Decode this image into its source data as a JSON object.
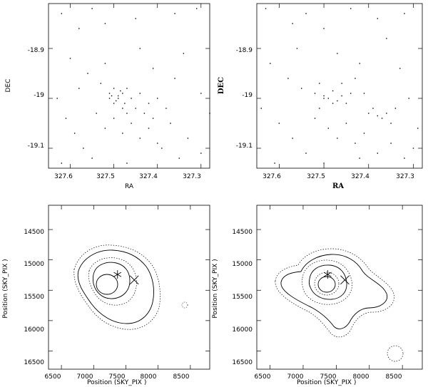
{
  "chart_data": [
    {
      "type": "scatter",
      "panel": "top-left",
      "xlabel": "RA",
      "ylabel": "DEC",
      "xlim": [
        327.65,
        327.28
      ],
      "ylim": [
        -19.14,
        -18.81
      ],
      "x_ticks": [
        "327.6",
        "327.5",
        "327.4",
        "327.3"
      ],
      "y_ticks": [
        "-18.9",
        "-19",
        "-19.1"
      ],
      "x_tick_values": [
        327.6,
        327.5,
        327.4,
        327.3
      ],
      "y_tick_values": [
        -18.9,
        -19.0,
        -19.1
      ],
      "points": [
        [
          327.62,
          -18.83
        ],
        [
          327.58,
          -18.86
        ],
        [
          327.55,
          -18.82
        ],
        [
          327.52,
          -18.85
        ],
        [
          327.45,
          -18.84
        ],
        [
          327.36,
          -18.83
        ],
        [
          327.31,
          -18.82
        ],
        [
          327.6,
          -18.92
        ],
        [
          327.56,
          -18.95
        ],
        [
          327.53,
          -18.97
        ],
        [
          327.51,
          -18.99
        ],
        [
          327.5,
          -18.98
        ],
        [
          327.49,
          -19.0
        ],
        [
          327.48,
          -18.99
        ],
        [
          327.505,
          -18.995
        ],
        [
          327.495,
          -19.005
        ],
        [
          327.485,
          -18.985
        ],
        [
          327.475,
          -19.01
        ],
        [
          327.47,
          -18.98
        ],
        [
          327.46,
          -19.0
        ],
        [
          327.45,
          -19.02
        ],
        [
          327.44,
          -18.99
        ],
        [
          327.43,
          -19.03
        ],
        [
          327.42,
          -19.01
        ],
        [
          327.41,
          -19.04
        ],
        [
          327.4,
          -19.0
        ],
        [
          327.38,
          -19.02
        ],
        [
          327.36,
          -18.96
        ],
        [
          327.34,
          -18.91
        ],
        [
          327.3,
          -18.99
        ],
        [
          327.28,
          -19.03
        ],
        [
          327.63,
          -19.0
        ],
        [
          327.61,
          -19.04
        ],
        [
          327.59,
          -19.07
        ],
        [
          327.57,
          -19.1
        ],
        [
          327.54,
          -19.03
        ],
        [
          327.52,
          -19.06
        ],
        [
          327.5,
          -19.04
        ],
        [
          327.48,
          -19.07
        ],
        [
          327.46,
          -19.05
        ],
        [
          327.44,
          -19.08
        ],
        [
          327.42,
          -19.06
        ],
        [
          327.4,
          -19.09
        ],
        [
          327.37,
          -19.05
        ],
        [
          327.35,
          -19.12
        ],
        [
          327.33,
          -19.08
        ],
        [
          327.3,
          -19.11
        ],
        [
          327.62,
          -19.13
        ],
        [
          327.55,
          -19.12
        ],
        [
          327.47,
          -19.13
        ],
        [
          327.39,
          -19.1
        ],
        [
          327.52,
          -18.93
        ],
        [
          327.44,
          -18.9
        ],
        [
          327.41,
          -18.94
        ],
        [
          327.58,
          -18.98
        ],
        [
          327.5,
          -19.01
        ],
        [
          327.49,
          -18.995
        ],
        [
          327.51,
          -19.0
        ],
        [
          327.48,
          -19.02
        ],
        [
          327.47,
          -19.03
        ]
      ]
    },
    {
      "type": "scatter",
      "panel": "top-right",
      "xlabel": "RA",
      "ylabel": "DEC",
      "xlim": [
        327.65,
        327.28
      ],
      "ylim": [
        -19.14,
        -18.81
      ],
      "x_ticks": [
        "327.6",
        "327.5",
        "327.4",
        "327.3"
      ],
      "y_ticks": [
        "-18.9",
        "-19",
        "-19.1"
      ],
      "x_tick_values": [
        327.6,
        327.5,
        327.4,
        327.3
      ],
      "y_tick_values": [
        -18.9,
        -19.0,
        -19.1
      ],
      "points": [
        [
          327.63,
          -18.82
        ],
        [
          327.57,
          -18.85
        ],
        [
          327.54,
          -18.83
        ],
        [
          327.5,
          -18.86
        ],
        [
          327.44,
          -18.82
        ],
        [
          327.38,
          -18.84
        ],
        [
          327.32,
          -18.83
        ],
        [
          327.62,
          -18.93
        ],
        [
          327.58,
          -18.96
        ],
        [
          327.55,
          -18.98
        ],
        [
          327.52,
          -18.99
        ],
        [
          327.51,
          -18.97
        ],
        [
          327.5,
          -18.995
        ],
        [
          327.49,
          -19.0
        ],
        [
          327.48,
          -18.985
        ],
        [
          327.47,
          -19.005
        ],
        [
          327.46,
          -18.97
        ],
        [
          327.45,
          -19.01
        ],
        [
          327.44,
          -18.99
        ],
        [
          327.43,
          -18.96
        ],
        [
          327.41,
          -18.99
        ],
        [
          327.4,
          -19.03
        ],
        [
          327.39,
          -19.02
        ],
        [
          327.38,
          -19.035
        ],
        [
          327.37,
          -19.04
        ],
        [
          327.36,
          -19.03
        ],
        [
          327.35,
          -19.05
        ],
        [
          327.34,
          -19.02
        ],
        [
          327.33,
          -18.94
        ],
        [
          327.31,
          -19.0
        ],
        [
          327.29,
          -19.06
        ],
        [
          327.64,
          -19.02
        ],
        [
          327.6,
          -19.05
        ],
        [
          327.57,
          -19.08
        ],
        [
          327.54,
          -19.11
        ],
        [
          327.52,
          -19.04
        ],
        [
          327.49,
          -19.06
        ],
        [
          327.47,
          -19.08
        ],
        [
          327.45,
          -19.05
        ],
        [
          327.43,
          -19.09
        ],
        [
          327.41,
          -19.07
        ],
        [
          327.38,
          -19.11
        ],
        [
          327.35,
          -19.09
        ],
        [
          327.32,
          -19.12
        ],
        [
          327.3,
          -19.1
        ],
        [
          327.61,
          -19.13
        ],
        [
          327.5,
          -19.13
        ],
        [
          327.42,
          -19.12
        ],
        [
          327.56,
          -18.9
        ],
        [
          327.47,
          -18.91
        ],
        [
          327.42,
          -18.93
        ],
        [
          327.36,
          -18.88
        ],
        [
          327.5,
          -19.0
        ],
        [
          327.48,
          -19.01
        ],
        [
          327.51,
          -19.02
        ],
        [
          327.46,
          -18.995
        ]
      ]
    },
    {
      "type": "contour",
      "panel": "bottom-left",
      "xlabel": "Position (SKY_PIX )",
      "ylabel": "Position (SKY_PIX )",
      "xlim": [
        6300,
        8800
      ],
      "ylim": [
        16800,
        14100
      ],
      "x_ticks": [
        "6500",
        "7000",
        "7500",
        "8000",
        "8500"
      ],
      "y_ticks": [
        "14500",
        "15000",
        "15500",
        "16000",
        "16500"
      ],
      "x_tick_values": [
        6500,
        7000,
        7500,
        8000,
        8500
      ],
      "y_tick_values": [
        14500,
        15000,
        15500,
        16000,
        16500
      ],
      "markers": [
        {
          "symbol": "asterisk",
          "x": 7370,
          "y": 15240
        },
        {
          "symbol": "cross",
          "x": 7630,
          "y": 15330
        }
      ]
    },
    {
      "type": "contour",
      "panel": "bottom-right",
      "xlabel": "Position (SKY_PIX )",
      "ylabel": "Position (SKY_PIX )",
      "xlim": [
        6300,
        8800
      ],
      "ylim": [
        16800,
        14100
      ],
      "x_ticks": [
        "6500",
        "7000",
        "7500",
        "8000",
        "8500"
      ],
      "y_ticks": [
        "14500",
        "15000",
        "15500",
        "16000",
        "16500"
      ],
      "x_tick_values": [
        6500,
        7000,
        7500,
        8000,
        8500
      ],
      "y_tick_values": [
        14500,
        15000,
        15500,
        16000,
        16500
      ],
      "markers": [
        {
          "symbol": "asterisk",
          "x": 7370,
          "y": 15240
        },
        {
          "symbol": "cross",
          "x": 7630,
          "y": 15330
        }
      ]
    }
  ]
}
